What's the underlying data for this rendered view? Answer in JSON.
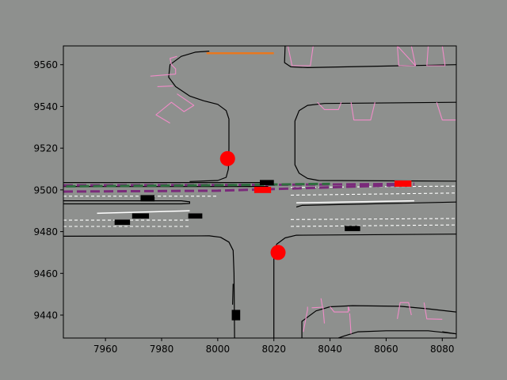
{
  "chart_data": {
    "type": "scatter",
    "title": "",
    "xlabel": "",
    "ylabel": "",
    "xlim": [
      7945,
      8085
    ],
    "ylim": [
      9429,
      9569
    ],
    "x_ticks": [
      7960,
      7980,
      8000,
      8020,
      8040,
      8060,
      8080
    ],
    "y_ticks": [
      9440,
      9460,
      9480,
      9500,
      9520,
      9540,
      9560
    ],
    "colors": {
      "background": "#8e908e",
      "road_edge": "#000000",
      "crosswalk": "#f08cc8",
      "lane_marking": "#ffffff",
      "stop_line": "#e87820",
      "route": "#7a2a7a",
      "route_secondary": "#2e6e3e",
      "traffic_signal": "#ff0000",
      "vehicle": "#000000"
    },
    "road_edges": [
      [
        [
          7945,
          9503.5
        ],
        [
          8018,
          9503.5
        ]
      ],
      [
        [
          7945,
          9501.6
        ],
        [
          8018,
          9501.6
        ]
      ],
      [
        [
          7945,
          9494.8
        ],
        [
          7987,
          9494.8
        ],
        [
          7990,
          9494.3
        ],
        [
          7990,
          9493.5
        ],
        [
          7987,
          9493.3
        ],
        [
          7945,
          9493.3
        ]
      ],
      [
        [
          7945,
          9477.8
        ],
        [
          7997,
          9478
        ],
        [
          8001,
          9477.3
        ],
        [
          8004,
          9475
        ],
        [
          8005.5,
          9471
        ],
        [
          8005.8,
          9460
        ],
        [
          8006,
          9429
        ]
      ],
      [
        [
          8020,
          9429
        ],
        [
          8020,
          9470
        ],
        [
          8021,
          9474
        ],
        [
          8024,
          9477
        ],
        [
          8028,
          9478.3
        ],
        [
          8085,
          9478.8
        ]
      ],
      [
        [
          8028,
          9491.8
        ],
        [
          8030,
          9492.6
        ],
        [
          8085,
          9494.2
        ]
      ],
      [
        [
          8024,
          9569
        ],
        [
          8023.8,
          9561
        ],
        [
          8026,
          9559
        ],
        [
          8032,
          9558.6
        ],
        [
          8085,
          9560
        ]
      ],
      [
        [
          8085,
          9542
        ],
        [
          8038,
          9541.4
        ],
        [
          8032,
          9540.5
        ],
        [
          8029,
          9538
        ],
        [
          8027.5,
          9533
        ],
        [
          8027.5,
          9512
        ],
        [
          8029,
          9508
        ],
        [
          8032,
          9505.5
        ],
        [
          8036,
          9504.5
        ],
        [
          8085,
          9504.2
        ]
      ],
      [
        [
          7995,
          9542.7
        ],
        [
          7990,
          9545
        ],
        [
          7985,
          9549.5
        ],
        [
          7982.5,
          9554
        ],
        [
          7983,
          9560
        ],
        [
          7987,
          9564
        ],
        [
          7992,
          9566
        ],
        [
          7997,
          9566.5
        ]
      ],
      [
        [
          7995,
          9542.7
        ],
        [
          8000,
          9541
        ],
        [
          8003,
          9538
        ],
        [
          8004,
          9534
        ],
        [
          8004,
          9520
        ],
        [
          8003.8,
          9510
        ],
        [
          8003,
          9506
        ],
        [
          8000,
          9504.5
        ],
        [
          7990,
          9504
        ]
      ],
      [
        [
          8085,
          9431
        ],
        [
          8075,
          9432.5
        ],
        [
          8060,
          9432.5
        ],
        [
          8050,
          9432
        ],
        [
          8045,
          9430
        ],
        [
          8043,
          9429
        ]
      ],
      [
        [
          8085,
          9431
        ],
        [
          8080,
          9432
        ]
      ],
      [
        [
          8030,
          9429
        ],
        [
          8030,
          9437
        ],
        [
          8035,
          9442
        ],
        [
          8040,
          9444
        ],
        [
          8048,
          9444.5
        ],
        [
          8065,
          9444.2
        ],
        [
          8075,
          9443
        ],
        [
          8085,
          9441.5
        ]
      ],
      [
        [
          8005.3,
          9445
        ],
        [
          8005.5,
          9455
        ]
      ]
    ],
    "crosswalks": [
      [
        [
          7985,
          9555.5
        ],
        [
          7985,
          9558
        ],
        [
          7983.5,
          9560
        ],
        [
          7983,
          9563
        ],
        [
          7985.5,
          9564
        ]
      ],
      [
        [
          7985,
          9555.5
        ],
        [
          7976,
          9554.5
        ]
      ],
      [
        [
          7984,
          9549.8
        ],
        [
          7978.5,
          9549.5
        ]
      ],
      [
        [
          7985.5,
          9546
        ],
        [
          7991.5,
          9540.5
        ],
        [
          7988,
          9537.5
        ],
        [
          7983.5,
          9542
        ],
        [
          7978,
          9536
        ],
        [
          7983,
          9532
        ]
      ],
      [
        [
          8025,
          9569
        ],
        [
          8026.5,
          9559.5
        ],
        [
          8033,
          9559.5
        ],
        [
          8034,
          9569
        ]
      ],
      [
        [
          8064,
          9569
        ],
        [
          8064.5,
          9559.5
        ],
        [
          8070.5,
          9559.5
        ],
        [
          8069,
          9569
        ]
      ],
      [
        [
          8075,
          9569
        ],
        [
          8074.5,
          9559.5
        ],
        [
          8081,
          9559.5
        ],
        [
          8080,
          9569
        ]
      ],
      [
        [
          8064,
          9569
        ],
        [
          8070.5,
          9559.5
        ]
      ],
      [
        [
          8035.5,
          9542
        ],
        [
          8038,
          9538.5
        ],
        [
          8043,
          9538.5
        ],
        [
          8044,
          9542
        ]
      ],
      [
        [
          8047.5,
          9542
        ],
        [
          8048.5,
          9533.5
        ],
        [
          8054.5,
          9533.5
        ],
        [
          8056,
          9542
        ]
      ],
      [
        [
          8078,
          9542
        ],
        [
          8080,
          9533.5
        ],
        [
          8085,
          9533.5
        ]
      ],
      [
        [
          8030.5,
          9432
        ],
        [
          8032,
          9442.5
        ],
        [
          8032,
          9444
        ]
      ],
      [
        [
          8033.5,
          9443.5
        ],
        [
          8037.5,
          9443.8
        ],
        [
          8038,
          9436
        ]
      ],
      [
        [
          8040,
          9444
        ],
        [
          8041.5,
          9441.5
        ],
        [
          8046.5,
          9441.5
        ],
        [
          8046.5,
          9444
        ],
        [
          8047,
          9442
        ]
      ],
      [
        [
          8047,
          9440.8
        ],
        [
          8047.5,
          9431
        ]
      ],
      [
        [
          8064,
          9438.2
        ],
        [
          8065,
          9446
        ],
        [
          8068,
          9446
        ],
        [
          8069,
          9440
        ]
      ],
      [
        [
          8073.5,
          9446
        ],
        [
          8074.5,
          9438.2
        ],
        [
          8080,
          9438
        ]
      ],
      [
        [
          8036.8,
          9448
        ],
        [
          8037.3,
          9444
        ]
      ]
    ],
    "lane_markings_dashed": [
      [
        [
          7945,
          9497
        ],
        [
          8000,
          9497
        ]
      ],
      [
        [
          7945,
          9485.5
        ],
        [
          7990,
          9485.5
        ]
      ],
      [
        [
          7945,
          9482.5
        ],
        [
          7990,
          9482.5
        ]
      ],
      [
        [
          8026,
          9501.2
        ],
        [
          8085,
          9501.8
        ]
      ],
      [
        [
          8026,
          9497.5
        ],
        [
          8085,
          9498.5
        ]
      ],
      [
        [
          8026,
          9485.8
        ],
        [
          8085,
          9486.3
        ]
      ],
      [
        [
          8026,
          9482.5
        ],
        [
          8085,
          9483.2
        ]
      ]
    ],
    "lane_markings_solid": [
      [
        [
          7957,
          9488.8
        ],
        [
          7990,
          9490
        ]
      ],
      [
        [
          8028,
          9493.8
        ],
        [
          8070,
          9494.8
        ]
      ]
    ],
    "stop_line": [
      [
        7996,
        9565.5
      ],
      [
        8020,
        9565.5
      ]
    ],
    "routes": [
      {
        "color": "#7a2a7a",
        "points": [
          [
            7945,
            9502.2
          ],
          [
            8018,
            9502.4
          ],
          [
            8060,
            9502.8
          ],
          [
            8070,
            9503
          ]
        ]
      },
      {
        "color": "#7a2a7a",
        "points": [
          [
            7945,
            9499.2
          ],
          [
            8000,
            9499.6
          ],
          [
            8030,
            9500.8
          ],
          [
            8070,
            9502.5
          ]
        ]
      },
      {
        "color": "#2e6e3e",
        "points": [
          [
            7946,
            9501.7
          ],
          [
            8005,
            9502.3
          ],
          [
            8040,
            9502.9
          ]
        ]
      }
    ],
    "signals": [
      {
        "x": 8003.5,
        "y": 9515
      },
      {
        "x": 8021.5,
        "y": 9470
      }
    ],
    "signal_boxes": [
      {
        "x": 8016,
        "y": 9500
      },
      {
        "x": 8066,
        "y": 9503
      }
    ],
    "vehicles": [
      {
        "x": 7975,
        "y": 9496,
        "w": 5,
        "h": 3
      },
      {
        "x": 7972.5,
        "y": 9487.5,
        "w": 6,
        "h": 2.5
      },
      {
        "x": 7966,
        "y": 9484.5,
        "w": 5.5,
        "h": 2.5
      },
      {
        "x": 7992,
        "y": 9487.5,
        "w": 5,
        "h": 2.5
      },
      {
        "x": 8017.5,
        "y": 9503.5,
        "w": 5,
        "h": 2.5
      },
      {
        "x": 8048,
        "y": 9481.5,
        "w": 5.5,
        "h": 2.5
      },
      {
        "x": 8006.5,
        "y": 9440,
        "w": 3,
        "h": 5
      }
    ]
  }
}
